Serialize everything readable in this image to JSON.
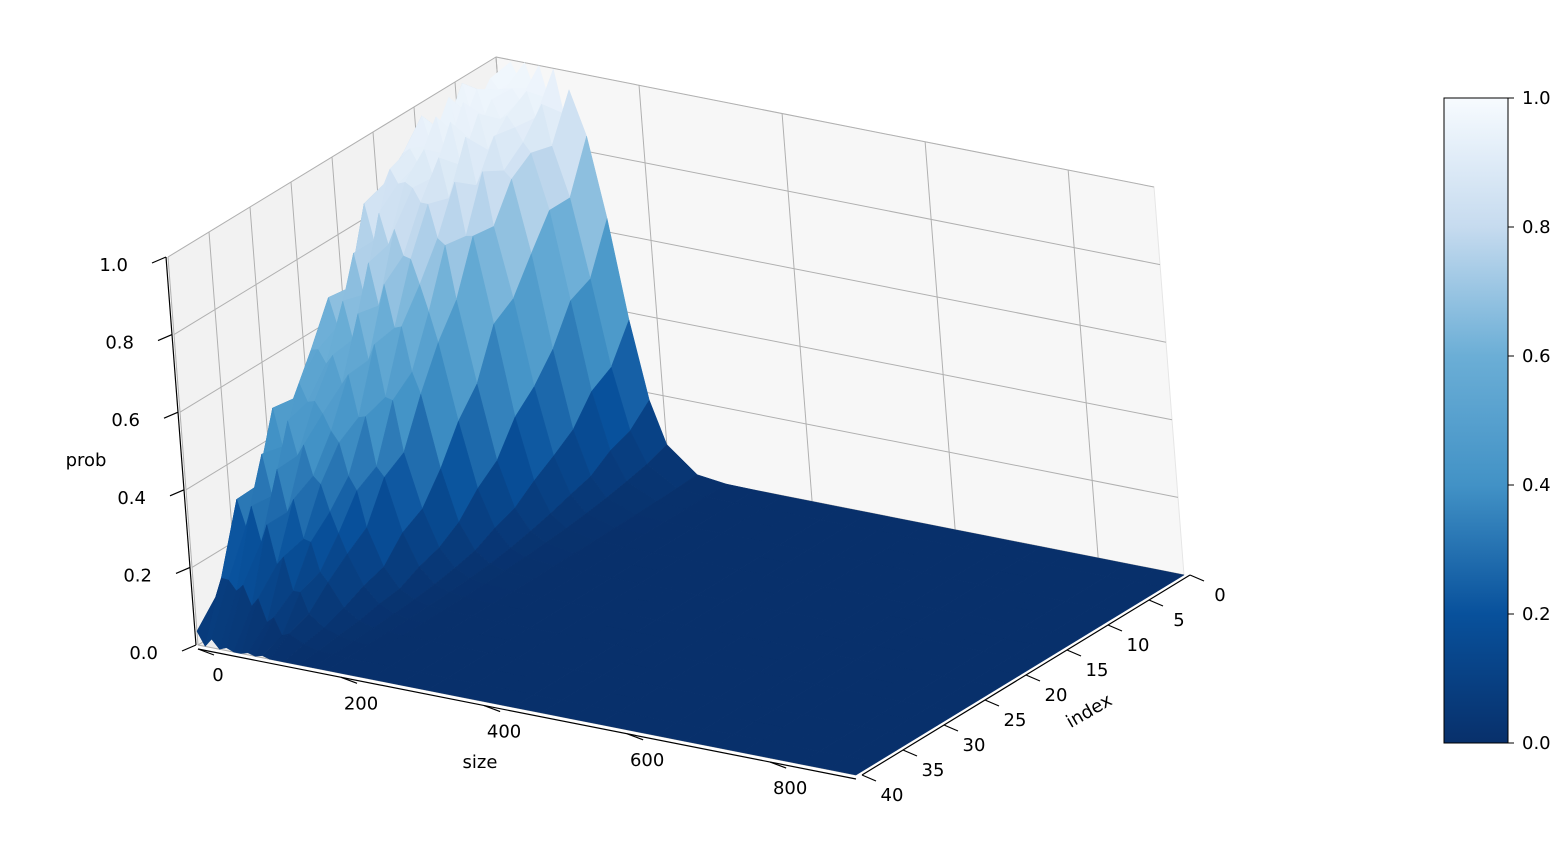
{
  "chart_data": {
    "type": "surface3d",
    "title": "",
    "colormap": "Blues_r",
    "colors": {
      "low": "#08306b",
      "mid": "#4292c6",
      "high": "#f7fbff",
      "pane": "#f2f2f2",
      "grid": "#b0b0b0"
    },
    "xaxis": {
      "label": "size",
      "range": [
        0,
        920
      ],
      "ticks": [
        0,
        200,
        400,
        600,
        800
      ]
    },
    "yaxis": {
      "label": "index",
      "range": [
        0,
        40
      ],
      "ticks": [
        0,
        5,
        10,
        15,
        20,
        25,
        30,
        35,
        40
      ]
    },
    "zaxis": {
      "label": "prob",
      "range": [
        0,
        1
      ],
      "ticks": [
        "0.0",
        "0.2",
        "0.4",
        "0.6",
        "0.8",
        "1.0"
      ]
    },
    "colorbar": {
      "range": [
        0,
        1
      ],
      "ticks": [
        "0.0",
        "0.2",
        "0.4",
        "0.6",
        "0.8",
        "1.0"
      ]
    },
    "sizes": [
      0,
      10,
      20,
      30,
      40,
      50,
      60,
      70,
      80,
      90,
      100,
      120,
      140,
      160,
      180,
      200,
      240,
      280,
      320,
      360,
      400,
      440,
      480,
      520,
      560,
      600,
      640,
      680,
      720,
      760,
      800,
      840,
      880,
      920
    ],
    "indices": [
      0,
      5,
      10,
      15,
      20,
      25,
      30,
      35
    ],
    "description_by_index": [
      {
        "index": 0,
        "peak": 0.98
      },
      {
        "index": 5,
        "peak": 0.96
      },
      {
        "index": 10,
        "peak": 0.95
      },
      {
        "index": 15,
        "peak": 0.9
      },
      {
        "index": 20,
        "peak": 0.72
      },
      {
        "index": 25,
        "peak": 0.58
      },
      {
        "index": 30,
        "peak": 0.45
      },
      {
        "index": 35,
        "peak": 0.3
      }
    ],
    "grid": "on"
  }
}
